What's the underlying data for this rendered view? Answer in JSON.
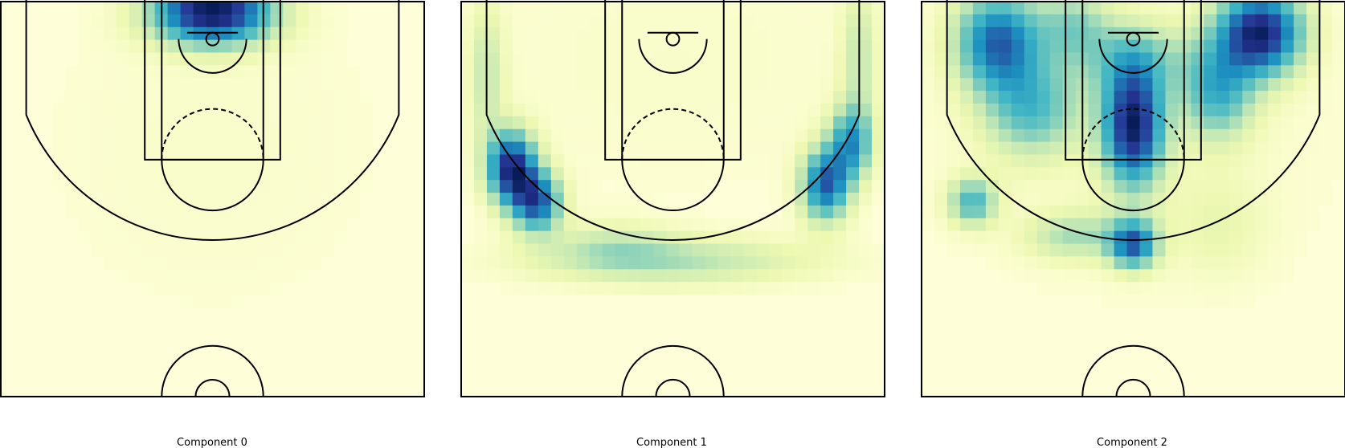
{
  "chart_data": [
    {
      "type": "heatmap",
      "title": "Component 0",
      "colormap": "YlGnBu",
      "background": "#FEFFD9",
      "grid": false,
      "hotspots": [
        {
          "x": 0,
          "y": 45,
          "sx": 5,
          "sy": 2.5,
          "w": 1.0
        },
        {
          "x": -3,
          "y": 50,
          "sx": 3,
          "sy": 2.5,
          "w": 0.5
        },
        {
          "x": 3,
          "y": 50,
          "sx": 3,
          "sy": 2.5,
          "w": 0.5
        },
        {
          "x": 0,
          "y": 30,
          "sx": 15,
          "sy": 15,
          "w": 0.05
        }
      ]
    },
    {
      "type": "heatmap",
      "title": "Component 1",
      "colormap": "YlGnBu",
      "background": "#FEFFD9",
      "grid": false,
      "hotspots": [
        {
          "x": -24,
          "y": 53,
          "sx": 1.2,
          "sy": 2.0,
          "w": 1.0
        },
        {
          "x": 24,
          "y": 53,
          "sx": 1.2,
          "sy": 2.0,
          "w": 0.8
        },
        {
          "x": -19,
          "y": 27,
          "sx": 2.0,
          "sy": 3.0,
          "w": 1.0
        },
        {
          "x": -16,
          "y": 23,
          "sx": 2.0,
          "sy": 2.5,
          "w": 0.8
        },
        {
          "x": 18,
          "y": 25,
          "sx": 2.0,
          "sy": 3.0,
          "w": 0.8
        },
        {
          "x": 21,
          "y": 30,
          "sx": 1.8,
          "sy": 3.0,
          "w": 0.6
        },
        {
          "x": -22,
          "y": 38,
          "sx": 1.5,
          "sy": 6,
          "w": 0.25
        },
        {
          "x": 22,
          "y": 40,
          "sx": 1.5,
          "sy": 6,
          "w": 0.25
        },
        {
          "x": 0,
          "y": 16,
          "sx": 12,
          "sy": 2.0,
          "w": 0.3
        },
        {
          "x": -7,
          "y": 18,
          "sx": 5,
          "sy": 2.0,
          "w": 0.18
        },
        {
          "x": 0,
          "y": 40,
          "sx": 20,
          "sy": 12,
          "w": 0.05
        }
      ]
    },
    {
      "type": "heatmap",
      "title": "Component 2",
      "colormap": "YlGnBu",
      "background": "#FEFFD9",
      "grid": false,
      "hotspots": [
        {
          "x": 15,
          "y": 43,
          "sx": 3.5,
          "sy": 3.5,
          "w": 1.0
        },
        {
          "x": 10,
          "y": 36,
          "sx": 3,
          "sy": 4,
          "w": 0.5
        },
        {
          "x": -16,
          "y": 42,
          "sx": 3.5,
          "sy": 4,
          "w": 0.75
        },
        {
          "x": -12,
          "y": 34,
          "sx": 4,
          "sy": 4,
          "w": 0.45
        },
        {
          "x": 0,
          "y": 32,
          "sx": 2.5,
          "sy": 5,
          "w": 1.0
        },
        {
          "x": 0,
          "y": 40,
          "sx": 5,
          "sy": 3,
          "w": 0.3
        },
        {
          "x": -7,
          "y": 44,
          "sx": 3,
          "sy": 3,
          "w": 0.3
        },
        {
          "x": -19,
          "y": 23,
          "sx": 2,
          "sy": 2,
          "w": 0.5
        },
        {
          "x": -7,
          "y": 19,
          "sx": 4,
          "sy": 2,
          "w": 0.3
        },
        {
          "x": 0,
          "y": 18,
          "sx": 2,
          "sy": 2,
          "w": 0.75
        },
        {
          "x": 10,
          "y": 20,
          "sx": 4,
          "sy": 4,
          "w": 0.12
        },
        {
          "x": 0,
          "y": 33,
          "sx": 18,
          "sy": 15,
          "w": 0.06
        }
      ]
    }
  ]
}
